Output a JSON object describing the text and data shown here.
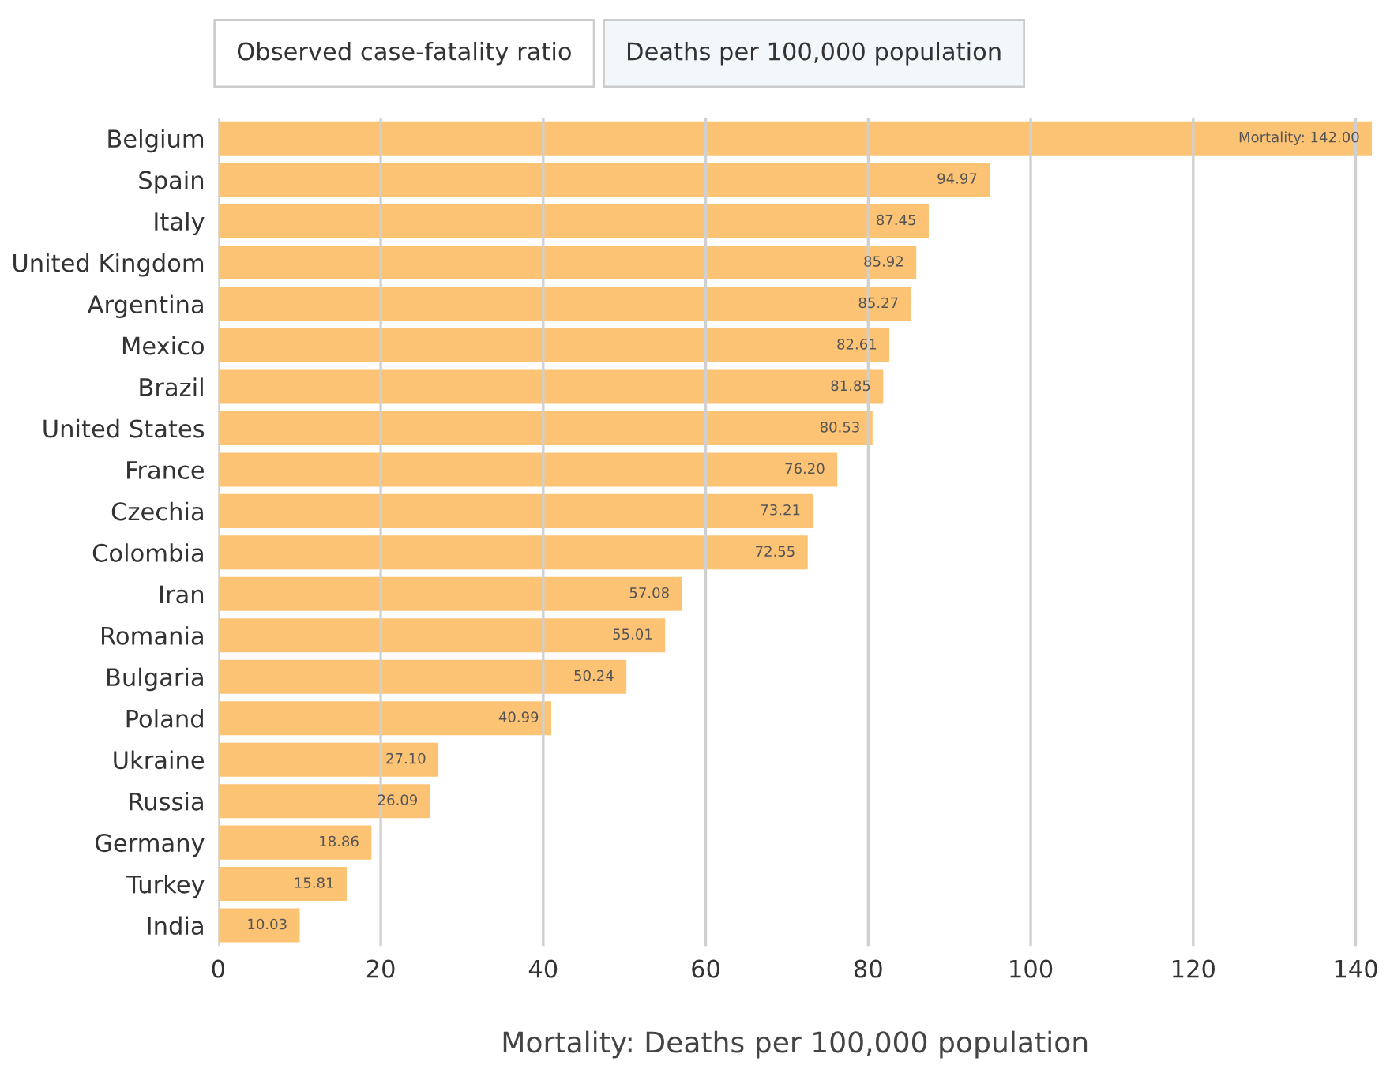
{
  "chart_data": {
    "type": "bar",
    "orientation": "horizontal",
    "categories": [
      "Belgium",
      "Spain",
      "Italy",
      "United Kingdom",
      "Argentina",
      "Mexico",
      "Brazil",
      "United States",
      "France",
      "Czechia",
      "Colombia",
      "Iran",
      "Romania",
      "Bulgaria",
      "Poland",
      "Ukraine",
      "Russia",
      "Germany",
      "Turkey",
      "India"
    ],
    "values": [
      142.0,
      94.97,
      87.45,
      85.92,
      85.27,
      82.61,
      81.85,
      80.53,
      76.2,
      73.21,
      72.55,
      57.08,
      55.01,
      50.24,
      40.99,
      27.1,
      26.09,
      18.86,
      15.81,
      10.03
    ],
    "value_labels": [
      "Mortality: 142.00",
      "94.97",
      "87.45",
      "85.92",
      "85.27",
      "82.61",
      "81.85",
      "80.53",
      "76.20",
      "73.21",
      "72.55",
      "57.08",
      "55.01",
      "50.24",
      "40.99",
      "27.10",
      "26.09",
      "18.86",
      "15.81",
      "10.03"
    ],
    "color": "#fdc374",
    "xlabel": "Mortality: Deaths per 100,000 population",
    "xlim": [
      0,
      142
    ],
    "xticks": [
      0,
      20,
      40,
      60,
      80,
      100,
      120,
      140
    ],
    "grid": "x",
    "annotations": [
      "Observed case-fatality ratio",
      "Deaths per 100,000 population"
    ]
  }
}
